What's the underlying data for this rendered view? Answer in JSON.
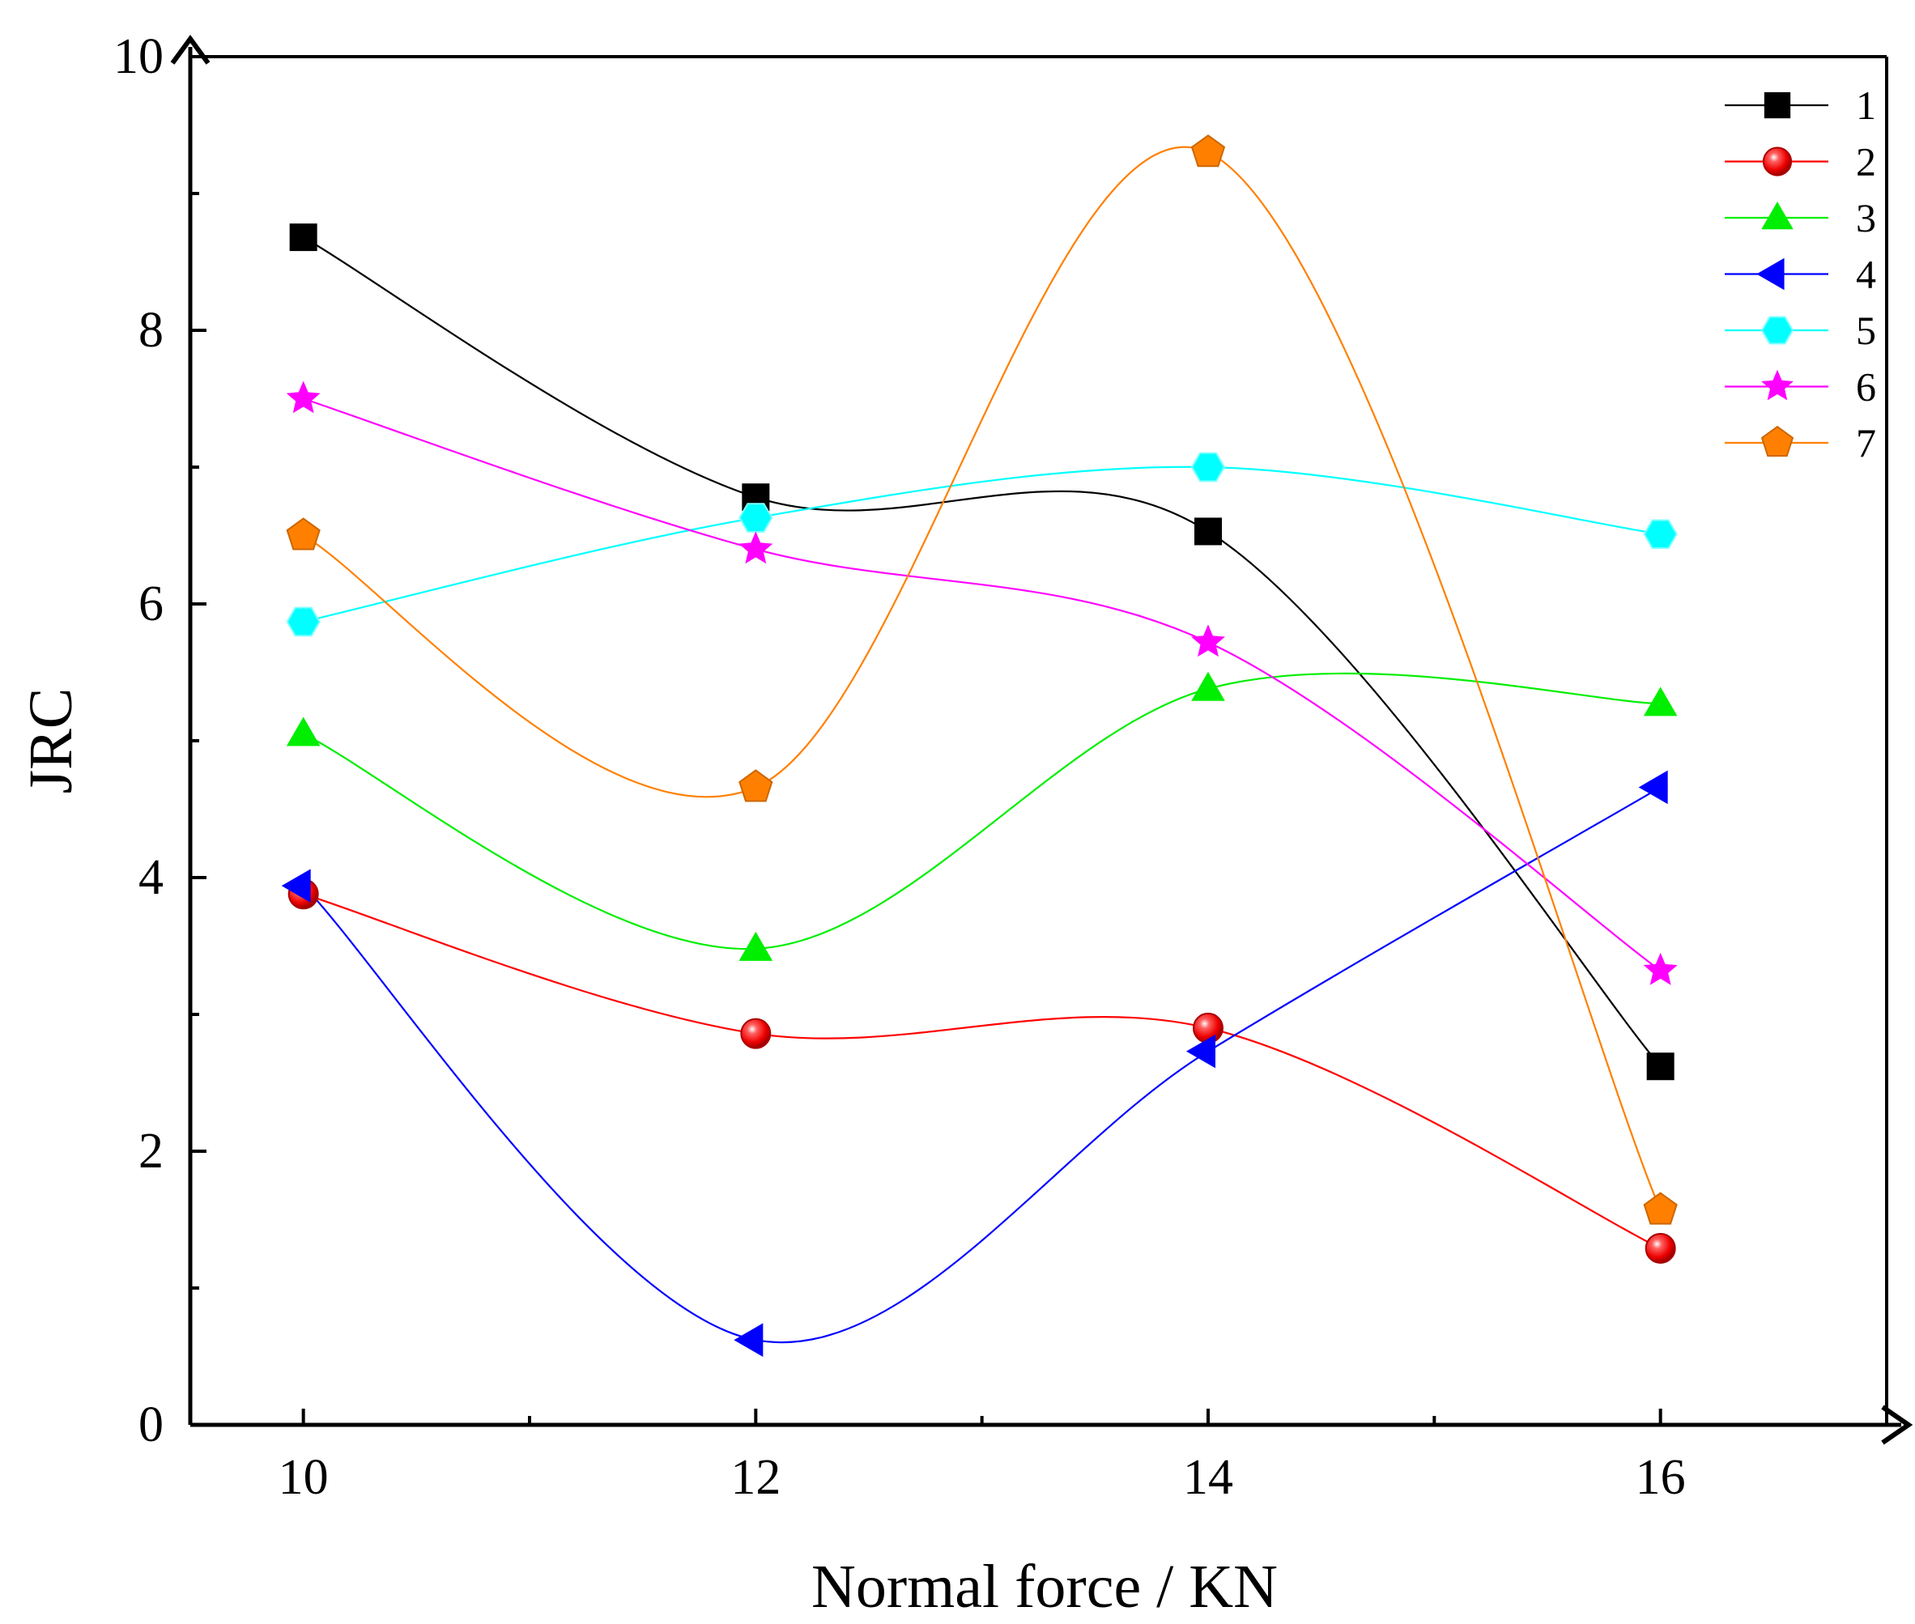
{
  "chart_data": {
    "type": "line",
    "title": "",
    "xlabel": "Normal force / KN",
    "ylabel": "JRC",
    "x": [
      10,
      12,
      14,
      16
    ],
    "xlim": [
      9.5,
      17
    ],
    "ylim": [
      0,
      10
    ],
    "xticks": [
      10,
      12,
      14,
      16
    ],
    "yticks": [
      0,
      2,
      4,
      6,
      8,
      10
    ],
    "grid": false,
    "legend_position": "top-right",
    "series": [
      {
        "name": "1",
        "color": "#000000",
        "marker": "square",
        "values": [
          8.68,
          6.78,
          6.53,
          2.62
        ]
      },
      {
        "name": "2",
        "color": "#ff0000",
        "marker": "sphere",
        "values": [
          3.88,
          2.86,
          2.9,
          1.29
        ]
      },
      {
        "name": "3",
        "color": "#00ee00",
        "marker": "triangle-up",
        "values": [
          5.05,
          3.48,
          5.38,
          5.27
        ]
      },
      {
        "name": "4",
        "color": "#0000ff",
        "marker": "triangle-left",
        "values": [
          3.94,
          0.62,
          2.73,
          4.66
        ]
      },
      {
        "name": "5",
        "color": "#00ffff",
        "marker": "hexagon",
        "values": [
          5.87,
          6.63,
          7.0,
          6.51
        ]
      },
      {
        "name": "6",
        "color": "#ff00ff",
        "marker": "star",
        "values": [
          7.5,
          6.4,
          5.72,
          3.32
        ]
      },
      {
        "name": "7",
        "color": "#ff8000",
        "marker": "pentagon",
        "values": [
          6.5,
          4.66,
          9.3,
          1.57
        ]
      }
    ]
  }
}
